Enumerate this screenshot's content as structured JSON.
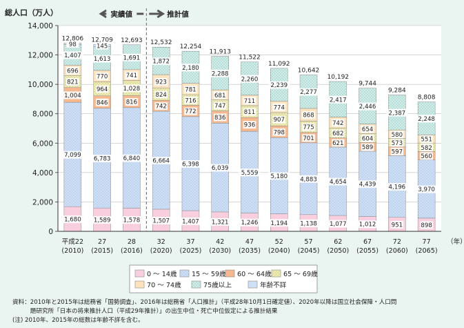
{
  "chart_data": {
    "type": "bar",
    "stacked": true,
    "ylabel": "総人口（万人）",
    "x_unit": "（年）",
    "ylim": [
      0,
      14000
    ],
    "yticks": [
      "0",
      "2,000",
      "4,000",
      "6,000",
      "8,000",
      "10,000",
      "12,000",
      "14,000"
    ],
    "categories": [
      {
        "era": "平成22",
        "year": "(2010)"
      },
      {
        "era": "27",
        "year": "(2015)"
      },
      {
        "era": "28",
        "year": "(2016)"
      },
      {
        "era": "32",
        "year": "(2020)"
      },
      {
        "era": "37",
        "year": "(2025)"
      },
      {
        "era": "42",
        "year": "(2030)"
      },
      {
        "era": "47",
        "year": "(2035)"
      },
      {
        "era": "52",
        "year": "(2040)"
      },
      {
        "era": "57",
        "year": "(2045)"
      },
      {
        "era": "62",
        "year": "(2050)"
      },
      {
        "era": "67",
        "year": "(2055)"
      },
      {
        "era": "72",
        "year": "(2060)"
      },
      {
        "era": "77",
        "year": "(2065)"
      }
    ],
    "totals": [
      "12,806",
      "12,709",
      "12,693",
      "12,532",
      "12,254",
      "11,913",
      "11,522",
      "11,092",
      "10,642",
      "10,192",
      "9,744",
      "9,284",
      "8,808"
    ],
    "series": [
      {
        "name": "0 〜 14歳",
        "color": "#f9cfe0",
        "values": [
          1680,
          1589,
          1578,
          1507,
          1407,
          1321,
          1246,
          1194,
          1138,
          1077,
          1012,
          951,
          898
        ],
        "labels": [
          "1,680",
          "1,589",
          "1,578",
          "1,507",
          "1,407",
          "1,321",
          "1,246",
          "1,194",
          "1,138",
          "1,077",
          "1,012",
          "951",
          "898"
        ]
      },
      {
        "name": "15 〜 59歳",
        "color": "#cfe0f6",
        "values": [
          7099,
          6783,
          6840,
          6664,
          6398,
          6039,
          5559,
          5180,
          4883,
          4654,
          4439,
          4196,
          3970
        ],
        "labels": [
          "7,099",
          "6,783",
          "6,840",
          "6,664",
          "6,398",
          "6,039",
          "5,559",
          "5,180",
          "4,883",
          "4,654",
          "4,439",
          "4,196",
          "3,970"
        ]
      },
      {
        "name": "60 〜 64歳",
        "color": "#f6b88f",
        "values": [
          1004,
          846,
          816,
          742,
          772,
          836,
          936,
          798,
          701,
          621,
          589,
          597,
          560
        ],
        "labels": [
          "1,004",
          "846",
          "816",
          "742",
          "772",
          "836",
          "936",
          "798",
          "701",
          "621",
          "589",
          "597",
          "560"
        ]
      },
      {
        "name": "65 〜 69歳",
        "color": "#f1ecb4",
        "values": [
          821,
          964,
          1028,
          824,
          716,
          747,
          811,
          907,
          775,
          682,
          604,
          573,
          582
        ],
        "labels": [
          "821",
          "964",
          "1,028",
          "824",
          "716",
          "747",
          "811",
          "907",
          "775",
          "682",
          "604",
          "573",
          "582"
        ]
      },
      {
        "name": "70 〜 74歳",
        "color": "#fde3bd",
        "values": [
          696,
          770,
          741,
          923,
          781,
          681,
          711,
          774,
          868,
          742,
          654,
          580,
          551
        ],
        "labels": [
          "696",
          "770",
          "741",
          "923",
          "781",
          "681",
          "711",
          "774",
          "868",
          "742",
          "654",
          "580",
          "551"
        ]
      },
      {
        "name": "75歳以上",
        "color": "#d2ece8",
        "values": [
          1407,
          1613,
          1691,
          1872,
          2180,
          2288,
          2260,
          2239,
          2277,
          2417,
          2446,
          2387,
          2248
        ],
        "labels": [
          "1,407",
          "1,613",
          "1,691",
          "1,872",
          "2,180",
          "2,288",
          "2,260",
          "2,239",
          "2,277",
          "2,417",
          "2,446",
          "2,387",
          "2,248"
        ]
      },
      {
        "name": "年齢不詳",
        "color": "#cfe0f6",
        "values": [
          98,
          145,
          0,
          0,
          0,
          0,
          0,
          0,
          0,
          0,
          0,
          0,
          0
        ],
        "labels": [
          "98",
          "145",
          "",
          "",
          "",
          "",
          "",
          "",
          "",
          "",
          "",
          "",
          ""
        ]
      }
    ],
    "actual_label": "実績値",
    "projected_label": "推計値",
    "legend": [
      {
        "name": "0 〜 14歳",
        "color": "#f9cfe0",
        "pattern": "solid"
      },
      {
        "name": "15 〜 59歳",
        "color": "#cfe0f6",
        "pattern": "dot-blue"
      },
      {
        "name": "60 〜 64歳",
        "color": "#f6b88f",
        "pattern": "solid"
      },
      {
        "name": "65 〜 69歳",
        "color": "#f1ecb4",
        "pattern": "dot-green"
      },
      {
        "name": "70 〜 74歳",
        "color": "#fde3bd",
        "pattern": "solid"
      },
      {
        "name": "75歳以上",
        "color": "#d2ece8",
        "pattern": "dot-teal"
      },
      {
        "name": "年齢不詳",
        "color": "#cfe0f6",
        "pattern": "solid"
      }
    ]
  },
  "notes": {
    "source_line1": "資料：2010年と2015年は総務省「国勢調査」、2016年は総務省「人口推計」（平成28年10月1日確定値）、2020年以降は国立社会保障・人口問",
    "source_line2": "　　　題研究所「日本の将来推計人口（平成29年推計）」の出生中位・死亡中位仮定による推計結果",
    "note_line": "(注) 2010年、2015年の総数は年齢不詳を含む。"
  }
}
